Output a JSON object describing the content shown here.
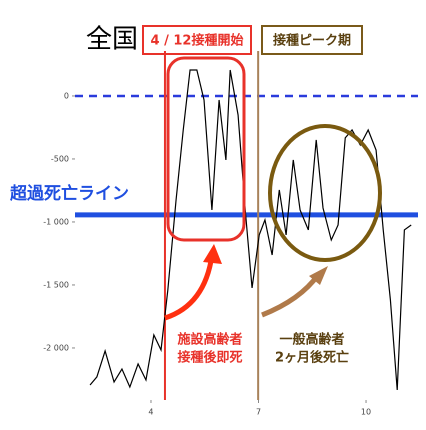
{
  "chart_data": {
    "type": "line",
    "title": "全国",
    "x": [
      2.3,
      2.49,
      2.72,
      2.97,
      3.19,
      3.41,
      3.64,
      3.86,
      4.08,
      4.28,
      4.47,
      4.7,
      4.9,
      5.09,
      5.28,
      5.48,
      5.7,
      5.9,
      6.09,
      6.21,
      6.43,
      6.63,
      6.82,
      7.02,
      7.18,
      7.38,
      7.58,
      7.77,
      7.97,
      8.16,
      8.39,
      8.61,
      8.8,
      9.03,
      9.22,
      9.42,
      9.61,
      9.84,
      10.06,
      10.28,
      10.48,
      10.68,
      10.87,
      11.07,
      11.26
    ],
    "series": [
      {
        "color": "#000000",
        "values": [
          -2294,
          -2230,
          -2024,
          -2270,
          -2167,
          -2310,
          -2127,
          -2254,
          -1897,
          -2016,
          -1540,
          -825,
          -270,
          206,
          206,
          -32,
          -905,
          -32,
          -508,
          206,
          -151,
          -905,
          -1524,
          -1103,
          -984,
          -1262,
          -746,
          -1103,
          -508,
          -905,
          -1063,
          -349,
          -889,
          -1143,
          -1024,
          -333,
          -270,
          -389,
          -270,
          -429,
          -1063,
          -1619,
          -2333,
          -1063,
          -1024
        ]
      }
    ],
    "xlim": [
      1.88,
      11.45
    ],
    "ylim": [
      -2413,
      325
    ],
    "xticks": [
      4,
      7,
      10
    ],
    "yticks": [
      0,
      -500,
      {
        "value": -1000,
        "label": "-1 000"
      },
      {
        "value": -1500,
        "label": "-1 500"
      },
      {
        "value": -2000,
        "label": "-2 000"
      }
    ],
    "hlines": [
      {
        "value": 0,
        "color": "#2a3bdc",
        "dashed": true
      },
      {
        "value": -944,
        "color": "#1f4fe0",
        "dashed": false
      }
    ],
    "vlines": [
      {
        "value": 4.39,
        "color": "#e8322a"
      },
      {
        "value": 6.99,
        "color": "#a8825a"
      }
    ],
    "annotations": {
      "start": "4 / 12接種開始",
      "peak": "接種ピーク期",
      "excess": "超過死亡ライン",
      "facility": [
        "施設高齢者",
        "接種後即死"
      ],
      "general": [
        "一般高齢者",
        "2ヶ月後死亡"
      ]
    }
  }
}
